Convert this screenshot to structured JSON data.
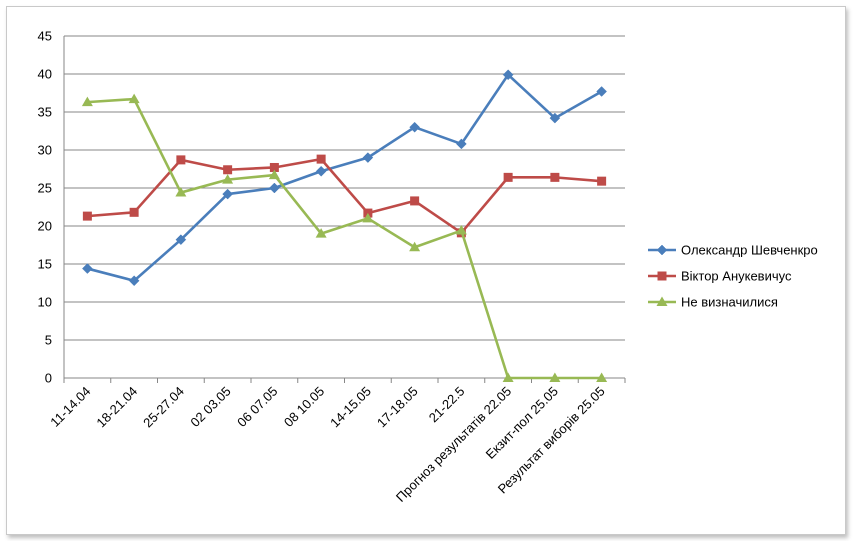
{
  "chart_data": {
    "type": "line",
    "title": "",
    "xlabel": "",
    "ylabel": "",
    "ylim": [
      0,
      45
    ],
    "yticks": [
      0,
      5,
      10,
      15,
      20,
      25,
      30,
      35,
      40,
      45
    ],
    "grid": true,
    "legend_position": "right",
    "categories": [
      "11-14.04",
      "18-21.04",
      "25-27.04",
      "02 03.05",
      "06 07.05",
      "08 10.05",
      "14-15.05",
      "17-18.05",
      "21-22.5",
      "Прогноз результатів 22.05",
      "Екзит-пол 25.05",
      "Результат виборів 25.05"
    ],
    "series": [
      {
        "name": "Олександр Шевченкро",
        "color": "#4a7ebb",
        "marker": "diamond",
        "values": [
          14.4,
          12.8,
          18.2,
          24.2,
          25.0,
          27.2,
          29.0,
          33.0,
          30.8,
          39.9,
          34.2,
          37.7
        ]
      },
      {
        "name": "Віктор Анукевичус",
        "color": "#be4b48",
        "marker": "square",
        "values": [
          21.3,
          21.8,
          28.7,
          27.4,
          27.7,
          28.8,
          21.7,
          23.3,
          19.1,
          26.4,
          26.4,
          25.9
        ]
      },
      {
        "name": "Не визначилися",
        "color": "#98b954",
        "marker": "triangle",
        "values": [
          36.3,
          36.7,
          24.4,
          26.1,
          26.7,
          19.0,
          21.0,
          17.2,
          19.4,
          0,
          0,
          0
        ]
      }
    ]
  }
}
